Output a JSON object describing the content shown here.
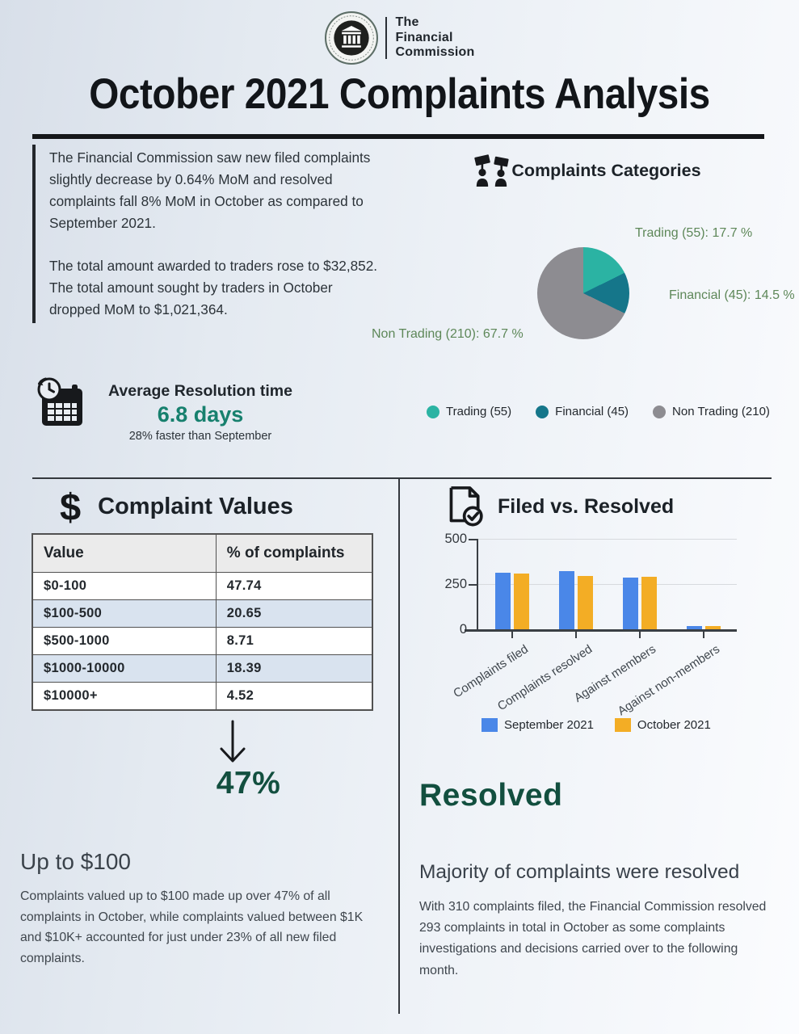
{
  "brand": {
    "name_line1": "The",
    "name_line2": "Financial",
    "name_line3": "Commission"
  },
  "page_title": "October 2021 Complaints Analysis",
  "intro": {
    "p1": "The Financial Commission saw new filed complaints slightly decrease by 0.64% MoM  and resolved complaints fall 8% MoM in October as compared to September 2021.",
    "p2": "The total amount awarded to traders rose to $32,852. The total amount sought by traders in October dropped MoM to $1,021,364."
  },
  "resolution_time": {
    "heading": "Average Resolution time",
    "value": "6.8 days",
    "note": "28% faster than September"
  },
  "complaint_values": {
    "dollar_glyph": "$",
    "heading": "Complaint Values",
    "table": {
      "headers": [
        "Value",
        "% of complaints"
      ],
      "rows": [
        [
          "$0-100",
          "47.74"
        ],
        [
          "$100-500",
          "20.65"
        ],
        [
          "$500-1000",
          "8.71"
        ],
        [
          "$1000-10000",
          "18.39"
        ],
        [
          "$10000+",
          "4.52"
        ]
      ]
    },
    "highlight_pct": "47%",
    "subheading": "Up to $100",
    "paragraph": "Complaints valued up to $100 made up over 47% of all complaints in October, while complaints valued between $1K and $10K+ accounted for just under 23% of all new filed complaints."
  },
  "resolved_section": {
    "heading": "Resolved",
    "subheading": "Majority of complaints were resolved",
    "paragraph": "With 310 complaints filed, the Financial Commission resolved 293 complaints in total in October as some complaints investigations and decisions carried over to the following month."
  },
  "chart_data": [
    {
      "type": "pie",
      "title": "Complaints Categories",
      "start_angle_deg": 0,
      "label_color": "#5d8758",
      "slices": [
        {
          "label": "Trading",
          "count": 55,
          "pct": 17.7,
          "color": "#2bb3a3",
          "callout": "Trading (55): 17.7 %",
          "legend": "Trading (55)"
        },
        {
          "label": "Financial",
          "count": 45,
          "pct": 14.5,
          "color": "#15768a",
          "callout": "Financial (45): 14.5 %",
          "legend": "Financial (45)"
        },
        {
          "label": "Non Trading",
          "count": 210,
          "pct": 67.7,
          "color": "#8d8c91",
          "callout": "Non Trading (210): 67.7 %",
          "legend": "Non Trading (210)"
        }
      ]
    },
    {
      "type": "bar",
      "title": "Filed vs. Resolved",
      "categories": [
        "Complaints filed",
        "Complaints resolved",
        "Against members",
        "Against non-members"
      ],
      "series": [
        {
          "name": "September 2021",
          "color": "#4a87e8",
          "values": [
            312,
            322,
            288,
            20
          ]
        },
        {
          "name": "October 2021",
          "color": "#f3ad25",
          "values": [
            310,
            293,
            290,
            17
          ]
        }
      ],
      "ylim": [
        0,
        500
      ],
      "yticks": [
        0,
        250,
        500
      ],
      "grid": "horizontal",
      "legend_position": "bottom"
    }
  ],
  "icons": {
    "logo": "bank-columns-emblem-icon",
    "categories": "people-with-signs-icon",
    "resolution": "clock-calendar-icon",
    "values": "dollar-icon",
    "filed": "document-check-icon",
    "arrow": "arrow-down-icon"
  },
  "colors": {
    "accent_teal": "#17806e",
    "accent_green_dark": "#124f3f",
    "label_green": "#5d8758"
  }
}
